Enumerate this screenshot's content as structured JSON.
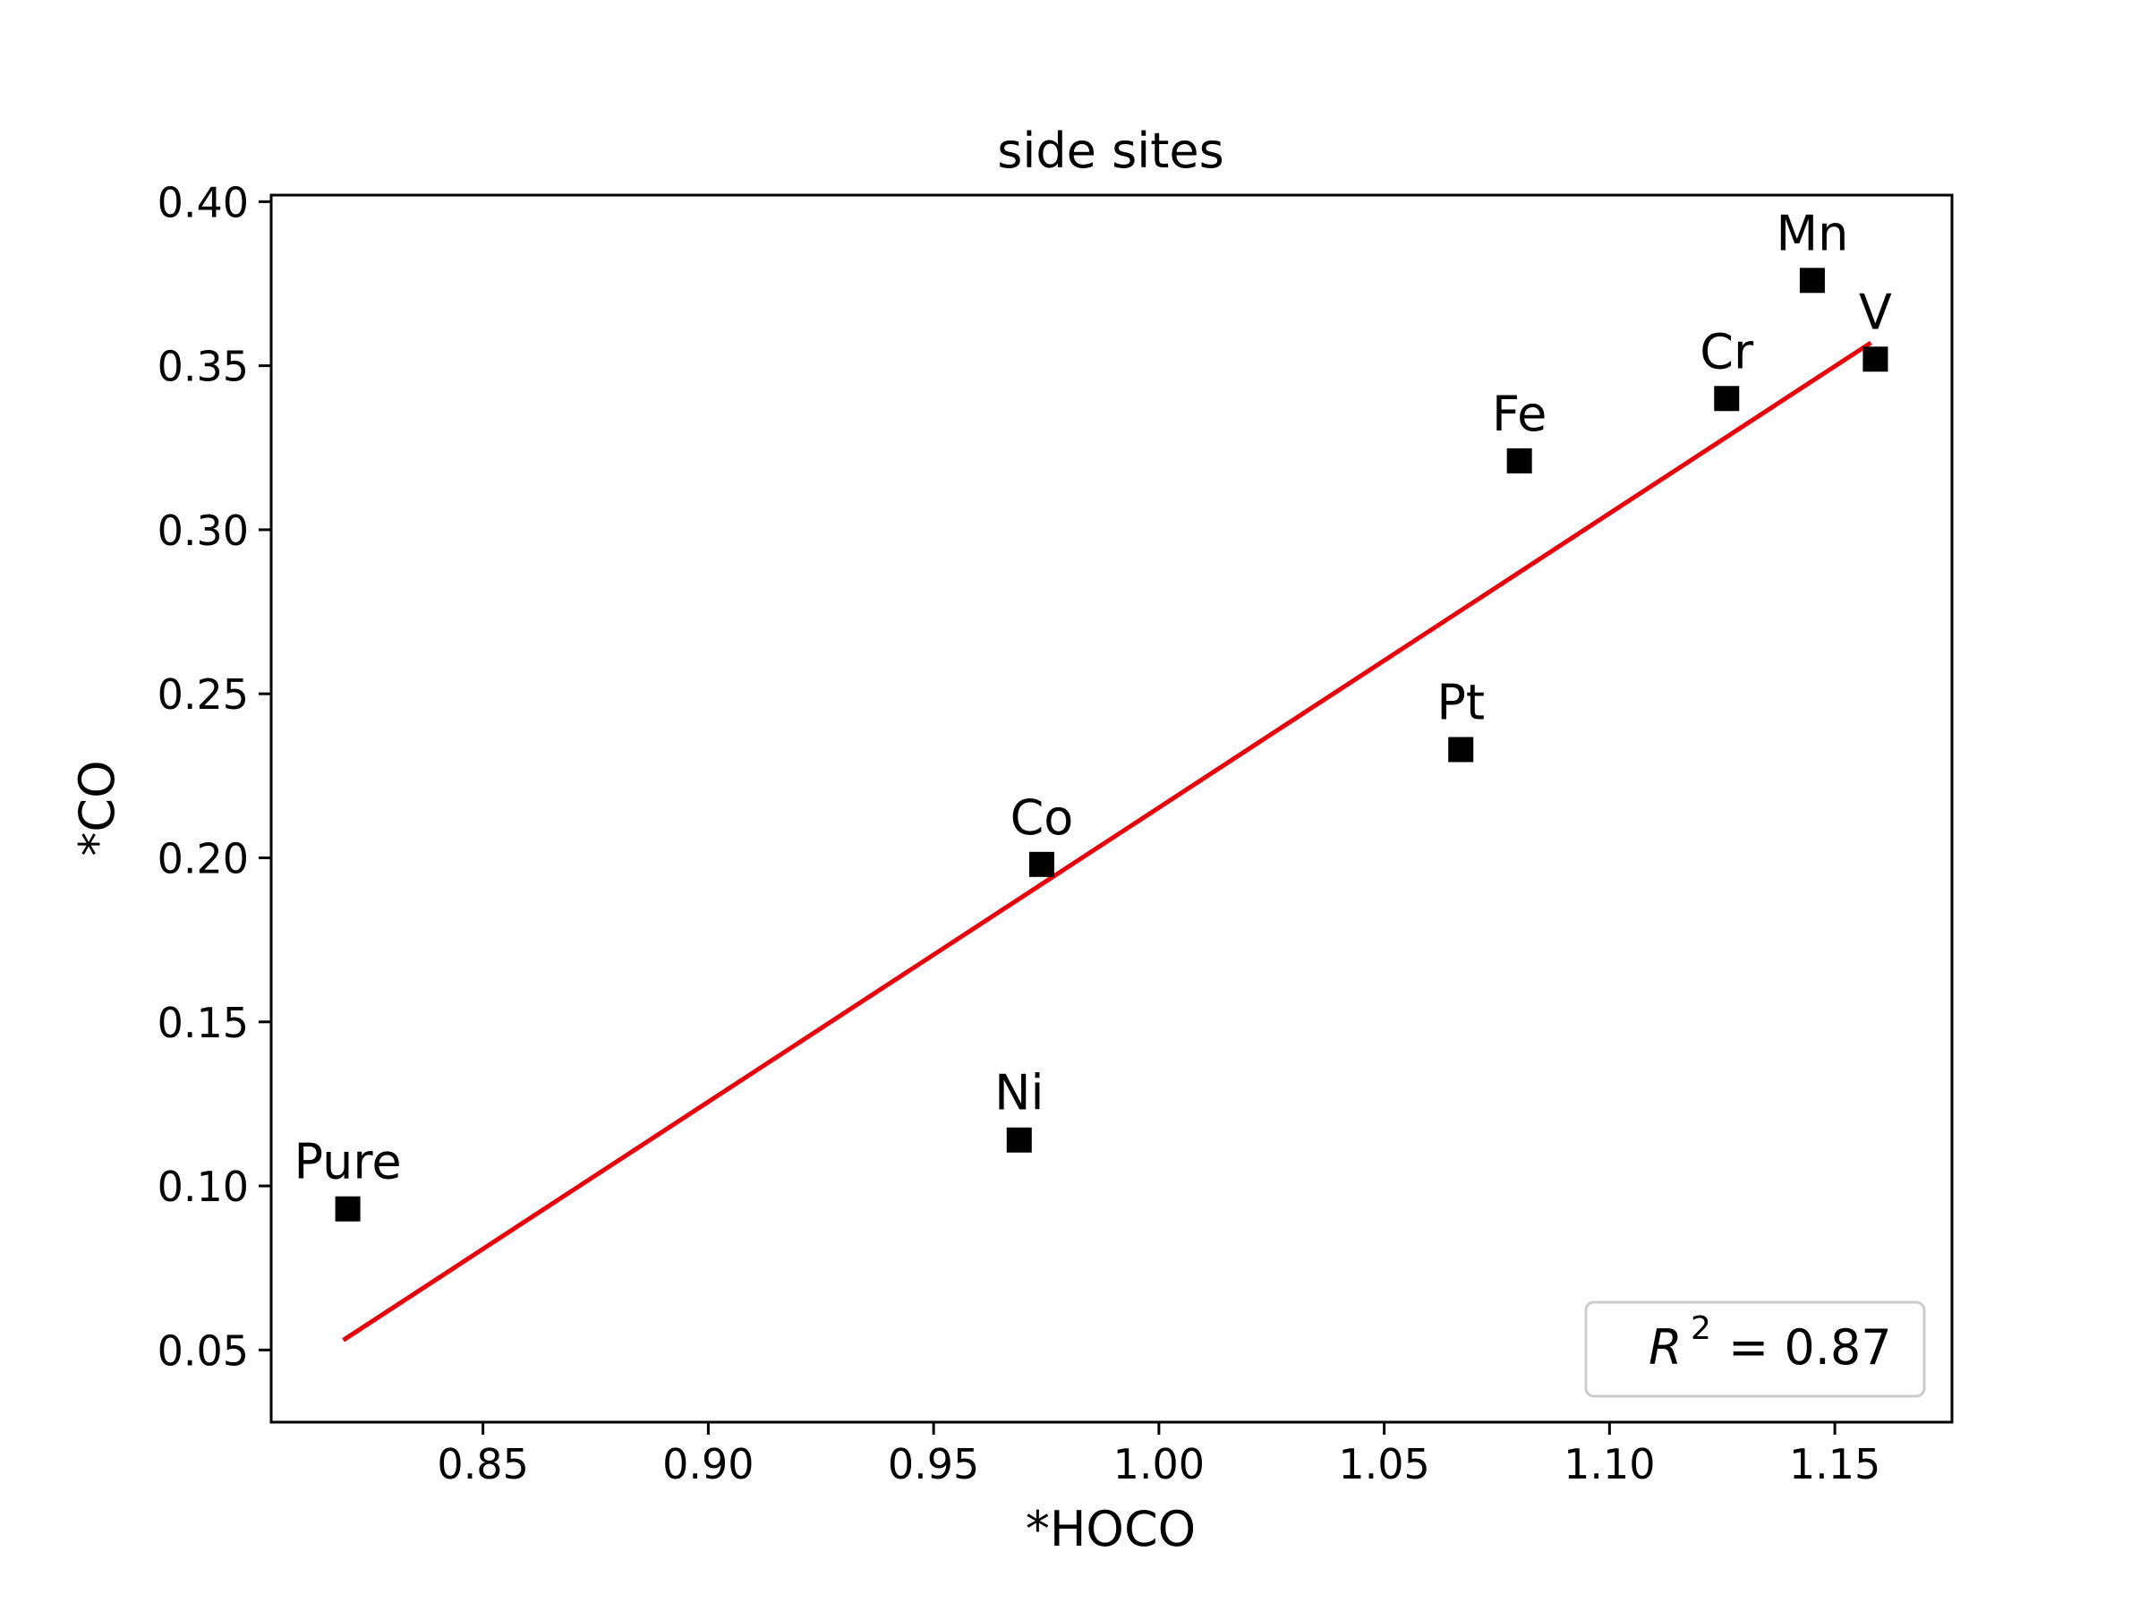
{
  "chart_data": {
    "type": "scatter",
    "title": "side sites",
    "xlabel": "*HOCO",
    "ylabel": "*CO",
    "xlim": [
      0.803,
      1.176
    ],
    "ylim": [
      0.028,
      0.402
    ],
    "xticks": [
      0.85,
      0.9,
      0.95,
      1.0,
      1.05,
      1.1,
      1.15
    ],
    "yticks": [
      0.05,
      0.1,
      0.15,
      0.2,
      0.25,
      0.3,
      0.35,
      0.4
    ],
    "xtick_labels": [
      "0.85",
      "0.90",
      "0.95",
      "1.00",
      "1.05",
      "1.10",
      "1.15"
    ],
    "ytick_labels": [
      "0.05",
      "0.10",
      "0.15",
      "0.20",
      "0.25",
      "0.30",
      "0.35",
      "0.40"
    ],
    "grid": false,
    "points": [
      {
        "label": "Pure",
        "x": 0.82,
        "y": 0.093
      },
      {
        "label": "Ni",
        "x": 0.969,
        "y": 0.114
      },
      {
        "label": "Co",
        "x": 0.974,
        "y": 0.198
      },
      {
        "label": "Pt",
        "x": 1.067,
        "y": 0.233
      },
      {
        "label": "Fe",
        "x": 1.08,
        "y": 0.321
      },
      {
        "label": "Cr",
        "x": 1.126,
        "y": 0.34
      },
      {
        "label": "Mn",
        "x": 1.145,
        "y": 0.376
      },
      {
        "label": "V",
        "x": 1.159,
        "y": 0.352
      }
    ],
    "fit_line": {
      "x": [
        0.819,
        1.158
      ],
      "y": [
        0.053,
        0.357
      ]
    },
    "marker_color": "#000000",
    "fit_color": "#e8000b",
    "legend": {
      "placement": "bottom-right",
      "r_squared_text": "= 0.87"
    }
  }
}
